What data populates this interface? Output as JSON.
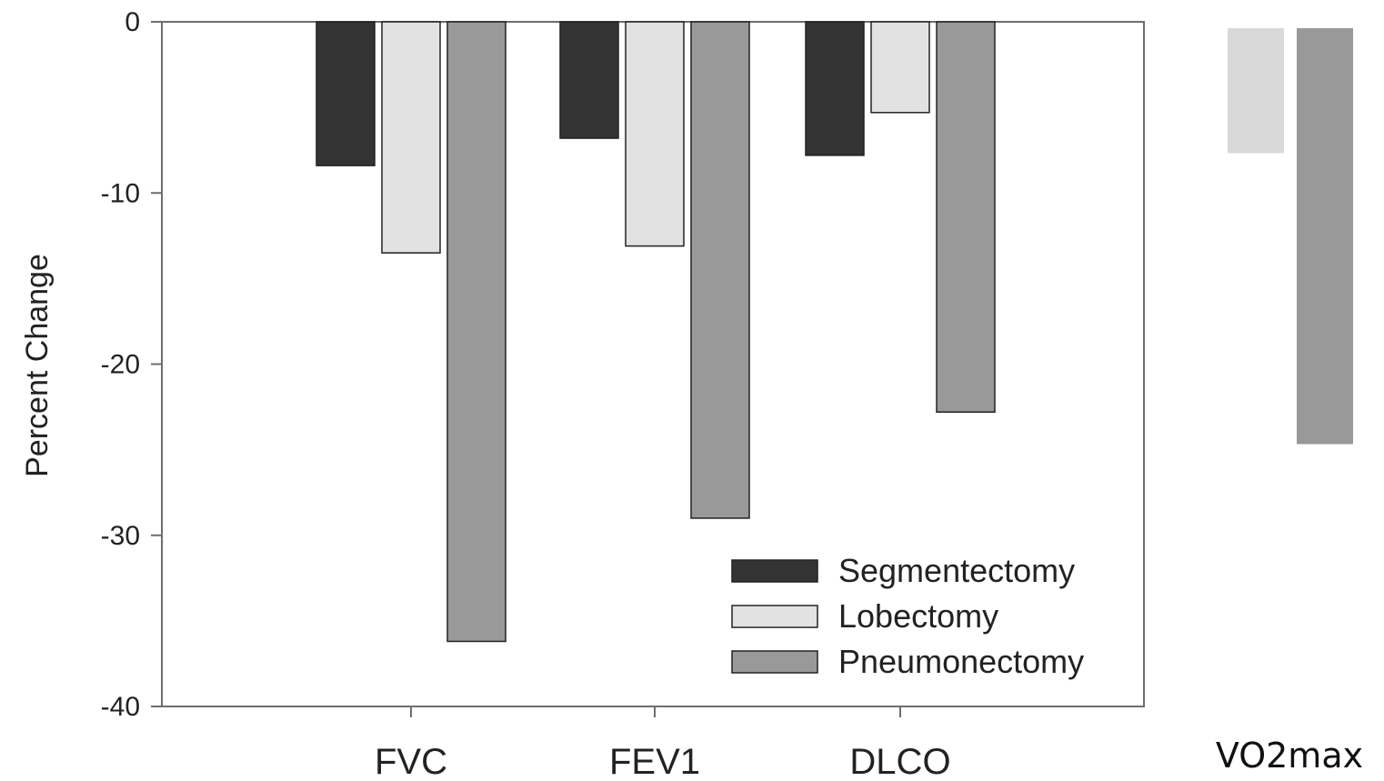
{
  "chart_data": {
    "type": "bar",
    "ylabel": "Percent Change",
    "ylim": [
      -40,
      0
    ],
    "yticks": [
      0,
      -10,
      -20,
      -30,
      -40
    ],
    "categories": [
      "FVC",
      "FEV1",
      "DLCO"
    ],
    "series": [
      {
        "name": "Segmentectomy",
        "color": "#333333",
        "values": [
          -8.4,
          -6.8,
          -7.8
        ]
      },
      {
        "name": "Lobectomy",
        "color": "#e2e2e2",
        "values": [
          -13.5,
          -13.1,
          -5.3
        ]
      },
      {
        "name": "Pneumonectomy",
        "color": "#999999",
        "values": [
          -36.2,
          -29.0,
          -22.8
        ]
      }
    ],
    "legend_position": "bottom-right",
    "extra_group": {
      "label": "VO2max",
      "bars": [
        {
          "color": "#d9d9d9",
          "value": -7.3
        },
        {
          "color": "#999999",
          "value": -24.3
        }
      ]
    }
  }
}
